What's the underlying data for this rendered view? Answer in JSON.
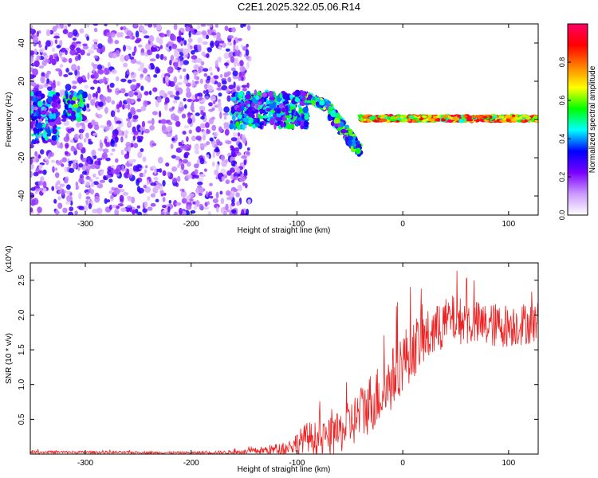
{
  "title": "C2E1.2025.322.05.06.R14",
  "chart_data": [
    {
      "type": "heatmap",
      "name": "spectrogram",
      "xlabel": "Height of straight line (km)",
      "ylabel": "Frequency (Hz)",
      "xlim": [
        -352,
        128
      ],
      "ylim": [
        -50,
        50
      ],
      "xticks": [
        -300,
        -200,
        -100,
        0,
        100
      ],
      "xtick_labels": [
        "-300",
        "-200",
        "-100",
        "0",
        "100"
      ],
      "yticks": [
        -40,
        -20,
        0,
        20,
        40
      ],
      "ytick_labels": [
        "-40",
        "-20",
        "0",
        "20",
        "40"
      ],
      "colorbar": {
        "label": "Normalized spectral amplitude",
        "range": [
          0,
          1
        ],
        "ticks": [
          0,
          0.2,
          0.4,
          0.6,
          0.8
        ],
        "tick_labels": [
          "0.0",
          "0.2",
          "0.4",
          "0.6",
          "0.8"
        ],
        "colormap": [
          "#ffffff",
          "#cc99ff",
          "#7a00ff",
          "#0000ff",
          "#00ffff",
          "#00ff00",
          "#ffff00",
          "#ff8000",
          "#ff0000",
          "#ff0066"
        ]
      },
      "regions": [
        {
          "desc": "broadband noise",
          "x": [
            -352,
            -145
          ],
          "f": [
            -50,
            50
          ],
          "amp": 0.25
        },
        {
          "desc": "signal cluster",
          "x": [
            -352,
            -325
          ],
          "f": [
            -12,
            14
          ],
          "amp": 0.4
        },
        {
          "desc": "signal cluster",
          "x": [
            -320,
            -300
          ],
          "f": [
            0,
            14
          ],
          "amp": 0.5
        },
        {
          "desc": "signal band",
          "x": [
            -162,
            -90
          ],
          "f": [
            -4,
            14
          ],
          "amp": 0.45
        },
        {
          "desc": "rising branch",
          "x": [
            -90,
            -70
          ],
          "f": [
            6,
            14
          ],
          "amp": 0.55
        },
        {
          "desc": "descending branch",
          "x": [
            -70,
            -40
          ],
          "f": [
            -22,
            6
          ],
          "amp": 0.5
        },
        {
          "desc": "narrow line",
          "x": [
            -40,
            128
          ],
          "f": [
            -1,
            2
          ],
          "amp": 0.85
        }
      ]
    },
    {
      "type": "line",
      "name": "snr",
      "xlabel": "Height of straight line (km)",
      "ylabel": "SNR (10 * v/v)",
      "yscale_note": "(x10^4)",
      "xlim": [
        -352,
        128
      ],
      "ylim": [
        0,
        2.75
      ],
      "xticks": [
        -300,
        -200,
        -100,
        0,
        100
      ],
      "xtick_labels": [
        "-300",
        "-200",
        "-100",
        "0",
        "100"
      ],
      "yticks": [
        0.5,
        1.0,
        1.5,
        2.0,
        2.5
      ],
      "ytick_labels": [
        "0.5",
        "1.0",
        "1.5",
        "2.0",
        "2.5"
      ],
      "color": "#ee2222",
      "trend": {
        "x": [
          -352,
          -200,
          -150,
          -110,
          -90,
          -75,
          -60,
          -45,
          -30,
          -15,
          0,
          15,
          30,
          45,
          60,
          80,
          100,
          128
        ],
        "y": [
          0.03,
          0.02,
          0.03,
          0.08,
          0.25,
          0.2,
          0.3,
          0.5,
          0.75,
          0.95,
          1.35,
          1.6,
          1.75,
          1.95,
          1.9,
          1.85,
          1.85,
          1.9
        ]
      },
      "noise": {
        "x": [
          -352,
          -200,
          -150,
          -110,
          -90,
          -60,
          -30,
          0,
          40,
          128
        ],
        "y": [
          0.02,
          0.015,
          0.03,
          0.1,
          0.22,
          0.3,
          0.45,
          0.45,
          0.35,
          0.3
        ]
      }
    }
  ]
}
